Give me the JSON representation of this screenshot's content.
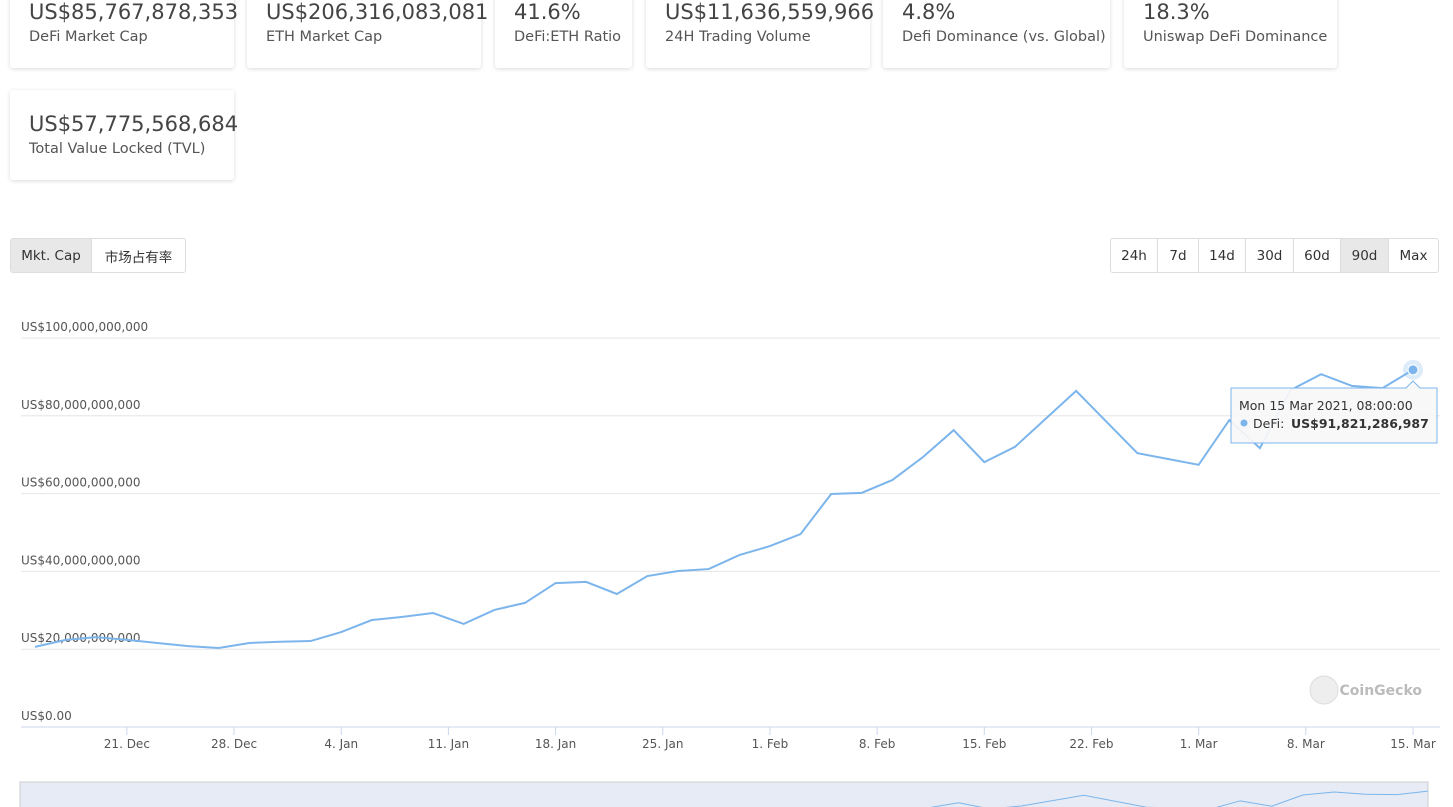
{
  "stats": [
    {
      "value": "US$85,767,878,353",
      "label": "DeFi Market Cap"
    },
    {
      "value": "US$206,316,083,081",
      "label": "ETH Market Cap"
    },
    {
      "value": "41.6%",
      "label": "DeFi:ETH Ratio"
    },
    {
      "value": "US$11,636,559,966",
      "label": "24H Trading Volume"
    },
    {
      "value": "4.8%",
      "label": "Defi Dominance (vs. Global)"
    },
    {
      "value": "18.3%",
      "label": "Uniswap DeFi Dominance"
    },
    {
      "value": "US$57,775,568,684",
      "label": "Total Value Locked (TVL)"
    }
  ],
  "chart_tabs": [
    "Mkt. Cap",
    "市场占有率"
  ],
  "range_buttons": [
    "24h",
    "7d",
    "14d",
    "30d",
    "60d",
    "90d",
    "Max"
  ],
  "chart_data": {
    "type": "line",
    "color": "#7cb5ec",
    "grid": true,
    "x": [
      "2020-12-15",
      "2020-12-17",
      "2020-12-19",
      "2020-12-21",
      "2020-12-23",
      "2020-12-25",
      "2020-12-27",
      "2020-12-29",
      "2020-12-31",
      "2021-01-02",
      "2021-01-04",
      "2021-01-06",
      "2021-01-08",
      "2021-01-10",
      "2021-01-12",
      "2021-01-14",
      "2021-01-16",
      "2021-01-18",
      "2021-01-20",
      "2021-01-22",
      "2021-01-24",
      "2021-01-26",
      "2021-01-28",
      "2021-01-30",
      "2021-02-01",
      "2021-02-03",
      "2021-02-05",
      "2021-02-07",
      "2021-02-09",
      "2021-02-11",
      "2021-02-13",
      "2021-02-15",
      "2021-02-17",
      "2021-02-19",
      "2021-02-21",
      "2021-02-23",
      "2021-02-25",
      "2021-02-27",
      "2021-03-01",
      "2021-03-03",
      "2021-03-05",
      "2021-03-07",
      "2021-03-09",
      "2021-03-11",
      "2021-03-13",
      "2021-03-15"
    ],
    "values": [
      20600000000,
      22400000000,
      23100000000,
      22400000000,
      21600000000,
      20800000000,
      20300000000,
      21600000000,
      21900000000,
      22100000000,
      24400000000,
      27500000000,
      28300000000,
      29300000000,
      26500000000,
      30100000000,
      31900000000,
      37000000000,
      37300000000,
      34200000000,
      38800000000,
      40100000000,
      40600000000,
      44200000000,
      46500000000,
      49600000000,
      59900000000,
      60200000000,
      63500000000,
      69400000000,
      76300000000,
      68100000000,
      72000000000,
      79200000000,
      86400000000,
      78400000000,
      70400000000,
      68900000000,
      67400000000,
      78900000000,
      71700000000,
      86600000000,
      90700000000,
      87700000000,
      87100000000,
      91821286987
    ],
    "xlim": [
      "2020-12-15",
      "2021-03-15"
    ],
    "xticks": [
      {
        "value": "2020-12-21",
        "label": "21. Dec"
      },
      {
        "value": "2020-12-28",
        "label": "28. Dec"
      },
      {
        "value": "2021-01-04",
        "label": "4. Jan"
      },
      {
        "value": "2021-01-11",
        "label": "11. Jan"
      },
      {
        "value": "2021-01-18",
        "label": "18. Jan"
      },
      {
        "value": "2021-01-25",
        "label": "25. Jan"
      },
      {
        "value": "2021-02-01",
        "label": "1. Feb"
      },
      {
        "value": "2021-02-08",
        "label": "8. Feb"
      },
      {
        "value": "2021-02-15",
        "label": "15. Feb"
      },
      {
        "value": "2021-02-22",
        "label": "22. Feb"
      },
      {
        "value": "2021-03-01",
        "label": "1. Mar"
      },
      {
        "value": "2021-03-08",
        "label": "8. Mar"
      },
      {
        "value": "2021-03-15",
        "label": "15. Mar"
      }
    ],
    "ylim": [
      0,
      100000000000
    ],
    "yticks": [
      {
        "value": 0,
        "label": "US$0.00"
      },
      {
        "value": 20000000000,
        "label": "US$20,000,000,000"
      },
      {
        "value": 40000000000,
        "label": "US$40,000,000,000"
      },
      {
        "value": 60000000000,
        "label": "US$60,000,000,000"
      },
      {
        "value": 80000000000,
        "label": "US$80,000,000,000"
      },
      {
        "value": 100000000000,
        "label": "US$100,000,000,000"
      }
    ],
    "tooltip": {
      "date": "Mon 15 Mar 2021, 08:00:00",
      "series_label": "DeFi:",
      "value_label": "US$91,821,286,987"
    },
    "watermark": "CoinGecko"
  }
}
